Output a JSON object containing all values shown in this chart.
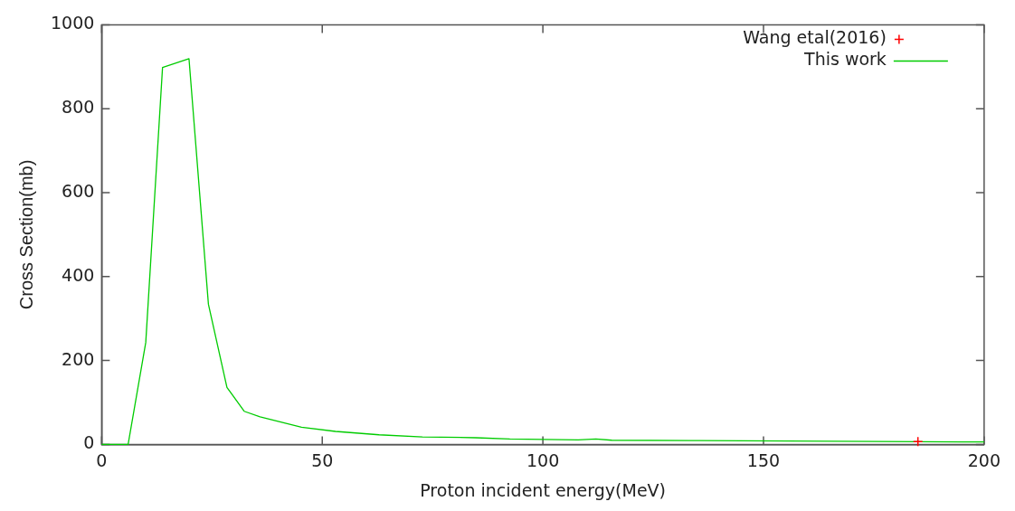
{
  "chart_data": {
    "type": "line",
    "xlabel": "Proton incident energy(MeV)",
    "ylabel": "Cross Section(mb)",
    "xlim": [
      0,
      200
    ],
    "ylim": [
      0,
      1000
    ],
    "xticks": [
      0,
      50,
      100,
      150,
      200
    ],
    "yticks": [
      0,
      200,
      400,
      600,
      800,
      1000
    ],
    "grid": false,
    "legend": "top right",
    "series": [
      {
        "name": "Wang etal(2016)",
        "type": "scatter",
        "marker": "cross",
        "color": "#ff0000",
        "x": [
          185
        ],
        "values": [
          7
        ]
      },
      {
        "name": "This work",
        "marker": "none",
        "color": "#00cc00",
        "x": [
          0,
          6,
          10,
          13.8,
          19.8,
          24.2,
          28.4,
          32.3,
          35.9,
          45.3,
          53,
          62.9,
          72.7,
          84.8,
          92.5,
          108,
          112,
          115.6,
          135.4,
          195,
          200
        ],
        "values": [
          0,
          0,
          243,
          898,
          919,
          334,
          136,
          79,
          66,
          41,
          31,
          23,
          18,
          16,
          13,
          11,
          13,
          10,
          9,
          6,
          6
        ]
      }
    ]
  }
}
